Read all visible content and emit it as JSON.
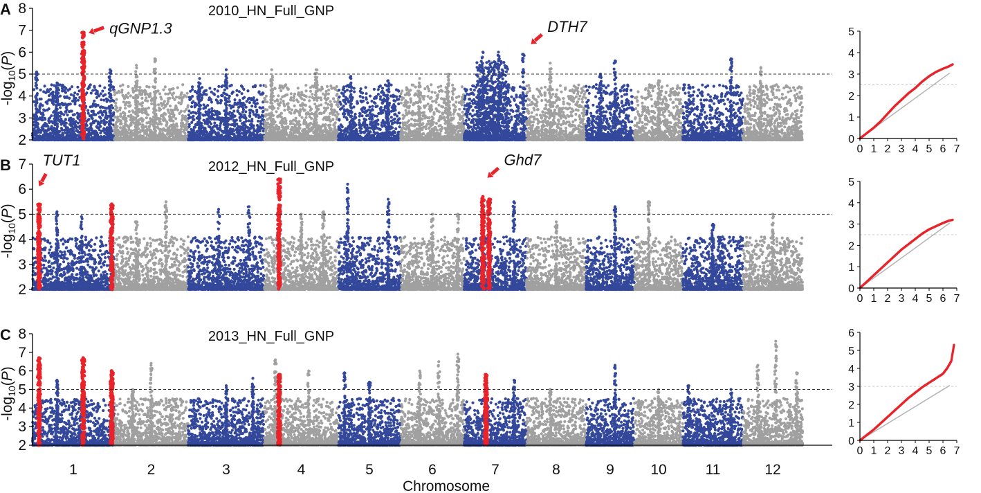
{
  "figure": {
    "xlabel": "Chromosome",
    "ylabel_prefix": "-log",
    "ylabel_sub": "10",
    "ylabel_suffix": "(P)",
    "threshold": 5,
    "colors": {
      "odd_chr": "#33479b",
      "even_chr": "#a0a0a0",
      "highlight": "#e8242a",
      "qq_expected": "#b4b4b4",
      "threshold_line": "#333333",
      "qq_threshold_line": "#c8c8c8"
    }
  },
  "chart_data": [
    {
      "type": "scatter",
      "panel": "A",
      "title": "2010_HN_Full_GNP",
      "xlabel": "Chromosome",
      "ylabel": "-log10(P)",
      "ylim": [
        2,
        8
      ],
      "yticks": [
        2,
        3,
        4,
        5,
        6,
        7,
        8
      ],
      "threshold": 5,
      "chromosomes": [
        "1",
        "2",
        "3",
        "4",
        "5",
        "6",
        "7",
        "8",
        "9",
        "10",
        "11",
        "12"
      ],
      "highlights": [
        {
          "chr": 1,
          "pos": 0.62,
          "peak": 6.9
        }
      ],
      "peaks": [
        {
          "chr": 1,
          "pos": 0.05,
          "peak": 5.1
        },
        {
          "chr": 1,
          "pos": 0.3,
          "peak": 4.6
        },
        {
          "chr": 1,
          "pos": 0.95,
          "peak": 5.2
        },
        {
          "chr": 2,
          "pos": 0.55,
          "peak": 5.7
        },
        {
          "chr": 2,
          "pos": 0.3,
          "peak": 5.4
        },
        {
          "chr": 3,
          "pos": 0.5,
          "peak": 5.2
        },
        {
          "chr": 3,
          "pos": 0.15,
          "peak": 4.8
        },
        {
          "chr": 4,
          "pos": 0.1,
          "peak": 5.2
        },
        {
          "chr": 4,
          "pos": 0.7,
          "peak": 5.2
        },
        {
          "chr": 5,
          "pos": 0.2,
          "peak": 4.9
        },
        {
          "chr": 5,
          "pos": 0.8,
          "peak": 4.7
        },
        {
          "chr": 6,
          "pos": 0.3,
          "peak": 4.8
        },
        {
          "chr": 6,
          "pos": 0.75,
          "peak": 5.0
        },
        {
          "chr": 7,
          "pos": 0.3,
          "peak": 6.0
        },
        {
          "chr": 7,
          "pos": 0.55,
          "peak": 6.0
        },
        {
          "chr": 7,
          "pos": 0.95,
          "peak": 5.9
        },
        {
          "chr": 8,
          "pos": 0.4,
          "peak": 5.5
        },
        {
          "chr": 9,
          "pos": 0.6,
          "peak": 5.6
        },
        {
          "chr": 9,
          "pos": 0.3,
          "peak": 5.0
        },
        {
          "chr": 10,
          "pos": 0.5,
          "peak": 4.7
        },
        {
          "chr": 11,
          "pos": 0.8,
          "peak": 5.7
        },
        {
          "chr": 12,
          "pos": 0.3,
          "peak": 5.3
        }
      ],
      "dense_regions": [
        {
          "chr": 7,
          "from": 0.2,
          "to": 0.7,
          "max": 5.6
        }
      ],
      "annotations": [
        {
          "text": "qGNP1.3",
          "chr": 1,
          "pos": 0.62,
          "y": 7.0,
          "color": "#111111",
          "direction": "left"
        },
        {
          "text": "DTH7",
          "chr": 8,
          "pos": 0.05,
          "y": 6.3,
          "color": "#e8242a",
          "direction": "down-left"
        }
      ],
      "qq": {
        "xlim": [
          0,
          7
        ],
        "ylim": [
          0,
          5
        ],
        "xticks": [
          0,
          1,
          2,
          3,
          4,
          5,
          6,
          7
        ],
        "yticks": [
          0,
          1,
          2,
          3,
          4,
          5
        ],
        "threshold": 2.5,
        "observed": [
          [
            0,
            0
          ],
          [
            0.5,
            0.25
          ],
          [
            1,
            0.5
          ],
          [
            1.5,
            0.8
          ],
          [
            2,
            1.15
          ],
          [
            2.5,
            1.5
          ],
          [
            3,
            1.8
          ],
          [
            3.5,
            2.1
          ],
          [
            4,
            2.35
          ],
          [
            4.5,
            2.65
          ],
          [
            5,
            2.9
          ],
          [
            5.5,
            3.1
          ],
          [
            6,
            3.25
          ],
          [
            6.4,
            3.35
          ],
          [
            6.7,
            3.45
          ]
        ]
      }
    },
    {
      "type": "scatter",
      "panel": "B",
      "title": "2012_HN_Full_GNP",
      "xlabel": "Chromosome",
      "ylabel": "-log10(P)",
      "ylim": [
        2,
        7
      ],
      "yticks": [
        2,
        3,
        4,
        5,
        6,
        7
      ],
      "threshold": 5,
      "chromosomes": [
        "1",
        "2",
        "3",
        "4",
        "5",
        "6",
        "7",
        "8",
        "9",
        "10",
        "11",
        "12"
      ],
      "highlights": [
        {
          "chr": 1,
          "pos": 0.08,
          "peak": 5.4
        },
        {
          "chr": 1,
          "pos": 0.97,
          "peak": 5.4
        },
        {
          "chr": 4,
          "pos": 0.2,
          "peak": 6.4
        },
        {
          "chr": 7,
          "pos": 0.3,
          "peak": 5.7
        },
        {
          "chr": 7,
          "pos": 0.4,
          "peak": 5.6
        }
      ],
      "peaks": [
        {
          "chr": 1,
          "pos": 0.3,
          "peak": 5.1
        },
        {
          "chr": 1,
          "pos": 0.6,
          "peak": 4.9
        },
        {
          "chr": 2,
          "pos": 0.7,
          "peak": 5.5
        },
        {
          "chr": 2,
          "pos": 0.3,
          "peak": 4.7
        },
        {
          "chr": 3,
          "pos": 0.4,
          "peak": 5.2
        },
        {
          "chr": 3,
          "pos": 0.8,
          "peak": 5.3
        },
        {
          "chr": 4,
          "pos": 0.5,
          "peak": 5.0
        },
        {
          "chr": 4,
          "pos": 0.8,
          "peak": 5.1
        },
        {
          "chr": 5,
          "pos": 0.15,
          "peak": 6.2
        },
        {
          "chr": 5,
          "pos": 0.8,
          "peak": 5.6
        },
        {
          "chr": 6,
          "pos": 0.5,
          "peak": 5.0
        },
        {
          "chr": 6,
          "pos": 0.9,
          "peak": 5.0
        },
        {
          "chr": 7,
          "pos": 0.8,
          "peak": 5.5
        },
        {
          "chr": 8,
          "pos": 0.5,
          "peak": 4.7
        },
        {
          "chr": 9,
          "pos": 0.6,
          "peak": 5.3
        },
        {
          "chr": 10,
          "pos": 0.3,
          "peak": 5.5
        },
        {
          "chr": 11,
          "pos": 0.5,
          "peak": 4.6
        },
        {
          "chr": 12,
          "pos": 0.5,
          "peak": 5.0
        }
      ],
      "dense_regions": [],
      "annotations": [
        {
          "text": "TUT1",
          "chr": 1,
          "pos": 0.08,
          "y": 6.5,
          "color": "#e8242a",
          "direction": "down"
        },
        {
          "text": "Ghd7",
          "chr": 7,
          "pos": 0.35,
          "y": 6.4,
          "color": "#e8242a",
          "direction": "down-left"
        }
      ],
      "qq": {
        "xlim": [
          0,
          7
        ],
        "ylim": [
          0,
          5
        ],
        "xticks": [
          0,
          1,
          2,
          3,
          4,
          5,
          6,
          7
        ],
        "yticks": [
          0,
          1,
          2,
          3,
          4,
          5
        ],
        "threshold": 2.5,
        "observed": [
          [
            0,
            0
          ],
          [
            0.5,
            0.3
          ],
          [
            1,
            0.6
          ],
          [
            1.5,
            0.9
          ],
          [
            2,
            1.2
          ],
          [
            2.5,
            1.5
          ],
          [
            3,
            1.8
          ],
          [
            3.5,
            2.05
          ],
          [
            4,
            2.3
          ],
          [
            4.5,
            2.55
          ],
          [
            5,
            2.75
          ],
          [
            5.5,
            2.9
          ],
          [
            6,
            3.05
          ],
          [
            6.4,
            3.15
          ],
          [
            6.7,
            3.2
          ]
        ]
      }
    },
    {
      "type": "scatter",
      "panel": "C",
      "title": "2013_HN_Full_GNP",
      "xlabel": "Chromosome",
      "ylabel": "-log10(P)",
      "ylim": [
        2,
        8
      ],
      "yticks": [
        2,
        3,
        4,
        5,
        6,
        7,
        8
      ],
      "threshold": 5,
      "chromosomes": [
        "1",
        "2",
        "3",
        "4",
        "5",
        "6",
        "7",
        "8",
        "9",
        "10",
        "11",
        "12"
      ],
      "highlights": [
        {
          "chr": 1,
          "pos": 0.08,
          "peak": 6.7
        },
        {
          "chr": 1,
          "pos": 0.62,
          "peak": 6.7
        },
        {
          "chr": 1,
          "pos": 0.97,
          "peak": 6.0
        },
        {
          "chr": 4,
          "pos": 0.2,
          "peak": 5.8
        },
        {
          "chr": 7,
          "pos": 0.35,
          "peak": 5.8
        }
      ],
      "peaks": [
        {
          "chr": 1,
          "pos": 0.3,
          "peak": 5.5
        },
        {
          "chr": 2,
          "pos": 0.5,
          "peak": 6.4
        },
        {
          "chr": 2,
          "pos": 0.25,
          "peak": 5.0
        },
        {
          "chr": 3,
          "pos": 0.5,
          "peak": 5.2
        },
        {
          "chr": 3,
          "pos": 0.85,
          "peak": 5.6
        },
        {
          "chr": 4,
          "pos": 0.15,
          "peak": 6.6
        },
        {
          "chr": 4,
          "pos": 0.6,
          "peak": 6.0
        },
        {
          "chr": 5,
          "pos": 0.1,
          "peak": 5.9
        },
        {
          "chr": 5,
          "pos": 0.5,
          "peak": 5.4
        },
        {
          "chr": 6,
          "pos": 0.3,
          "peak": 6.0
        },
        {
          "chr": 6,
          "pos": 0.6,
          "peak": 6.5
        },
        {
          "chr": 6,
          "pos": 0.9,
          "peak": 6.9
        },
        {
          "chr": 7,
          "pos": 0.8,
          "peak": 5.5
        },
        {
          "chr": 8,
          "pos": 0.4,
          "peak": 5.0
        },
        {
          "chr": 9,
          "pos": 0.6,
          "peak": 6.3
        },
        {
          "chr": 10,
          "pos": 0.5,
          "peak": 5.0
        },
        {
          "chr": 11,
          "pos": 0.1,
          "peak": 5.2
        },
        {
          "chr": 11,
          "pos": 0.8,
          "peak": 5.0
        },
        {
          "chr": 12,
          "pos": 0.25,
          "peak": 6.3
        },
        {
          "chr": 12,
          "pos": 0.55,
          "peak": 7.6
        },
        {
          "chr": 12,
          "pos": 0.9,
          "peak": 5.9
        }
      ],
      "dense_regions": [],
      "annotations": [],
      "qq": {
        "xlim": [
          0,
          7
        ],
        "ylim": [
          0,
          6
        ],
        "xticks": [
          0,
          1,
          2,
          3,
          4,
          5,
          6,
          7
        ],
        "yticks": [
          0,
          1,
          2,
          3,
          4,
          5,
          6
        ],
        "threshold": 3.0,
        "observed": [
          [
            0,
            0
          ],
          [
            0.5,
            0.3
          ],
          [
            1,
            0.6
          ],
          [
            1.5,
            0.95
          ],
          [
            2,
            1.3
          ],
          [
            2.5,
            1.65
          ],
          [
            3,
            2.0
          ],
          [
            3.5,
            2.35
          ],
          [
            4,
            2.65
          ],
          [
            4.5,
            2.95
          ],
          [
            5,
            3.2
          ],
          [
            5.5,
            3.45
          ],
          [
            6,
            3.7
          ],
          [
            6.3,
            4.0
          ],
          [
            6.6,
            4.4
          ],
          [
            6.8,
            5.3
          ]
        ]
      }
    }
  ]
}
